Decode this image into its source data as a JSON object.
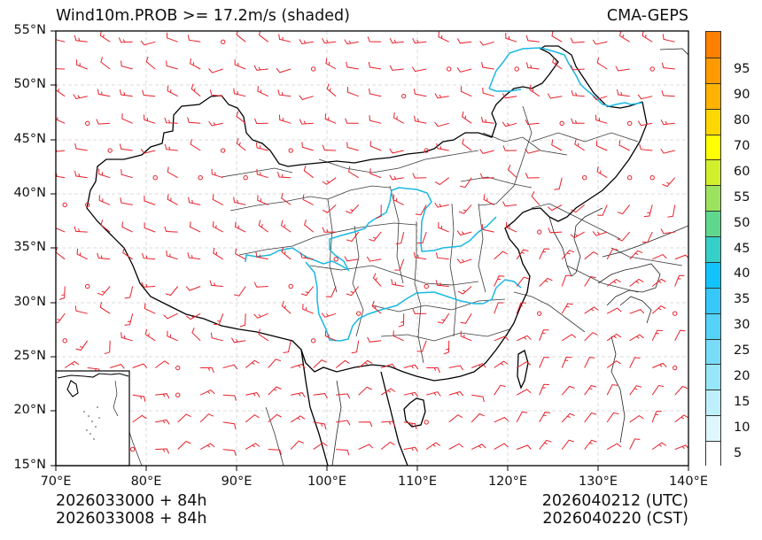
{
  "header": {
    "title": "Wind10m.PROB >= 17.2m/s (shaded)",
    "source": "CMA-GEPS"
  },
  "footer": {
    "init_utc": "2026033000 + 84h",
    "init_cst": "2026033008 + 84h",
    "valid_utc": "2026040212 (UTC)",
    "valid_cst": "2026040220 (CST)"
  },
  "axes": {
    "lat_labels": [
      "55°N",
      "50°N",
      "45°N",
      "40°N",
      "35°N",
      "30°N",
      "25°N",
      "20°N",
      "15°N"
    ],
    "lon_labels": [
      "70°E",
      "80°E",
      "90°E",
      "100°E",
      "110°E",
      "120°E",
      "130°E",
      "140°E"
    ],
    "lon_range": [
      70,
      140
    ],
    "lat_range": [
      15,
      55
    ],
    "gridlines": "dashed light gray every 10°E / 5°N"
  },
  "colorbar": {
    "tick_labels": [
      "5",
      "10",
      "15",
      "20",
      "25",
      "30",
      "35",
      "40",
      "45",
      "50",
      "55",
      "60",
      "70",
      "80",
      "90",
      "95"
    ],
    "colors": [
      "#ffffff",
      "#e0f8fc",
      "#bff0fa",
      "#9fe6f8",
      "#7fdcf8",
      "#5fd2f8",
      "#3fc8f8",
      "#1fbdfa",
      "#00ccff",
      "#30d0c8",
      "#60d890",
      "#a0e060",
      "#d8f030",
      "#ffff00",
      "#ffd800",
      "#ffb000",
      "#ff9800",
      "#ff7800"
    ]
  },
  "legend": {
    "wind_barbs": "red wind barbs on ~2.5° grid; circles denote calm",
    "colors": {
      "barb": "#e8202a",
      "river": "#1ab8e0",
      "national_border": "#000000",
      "province_border": "#333333",
      "grid": "#c8c8c8"
    }
  },
  "main": {
    "shaded_probability_present": "none (all below 5%)",
    "inset": "South China Sea islands inset at lower-left"
  }
}
